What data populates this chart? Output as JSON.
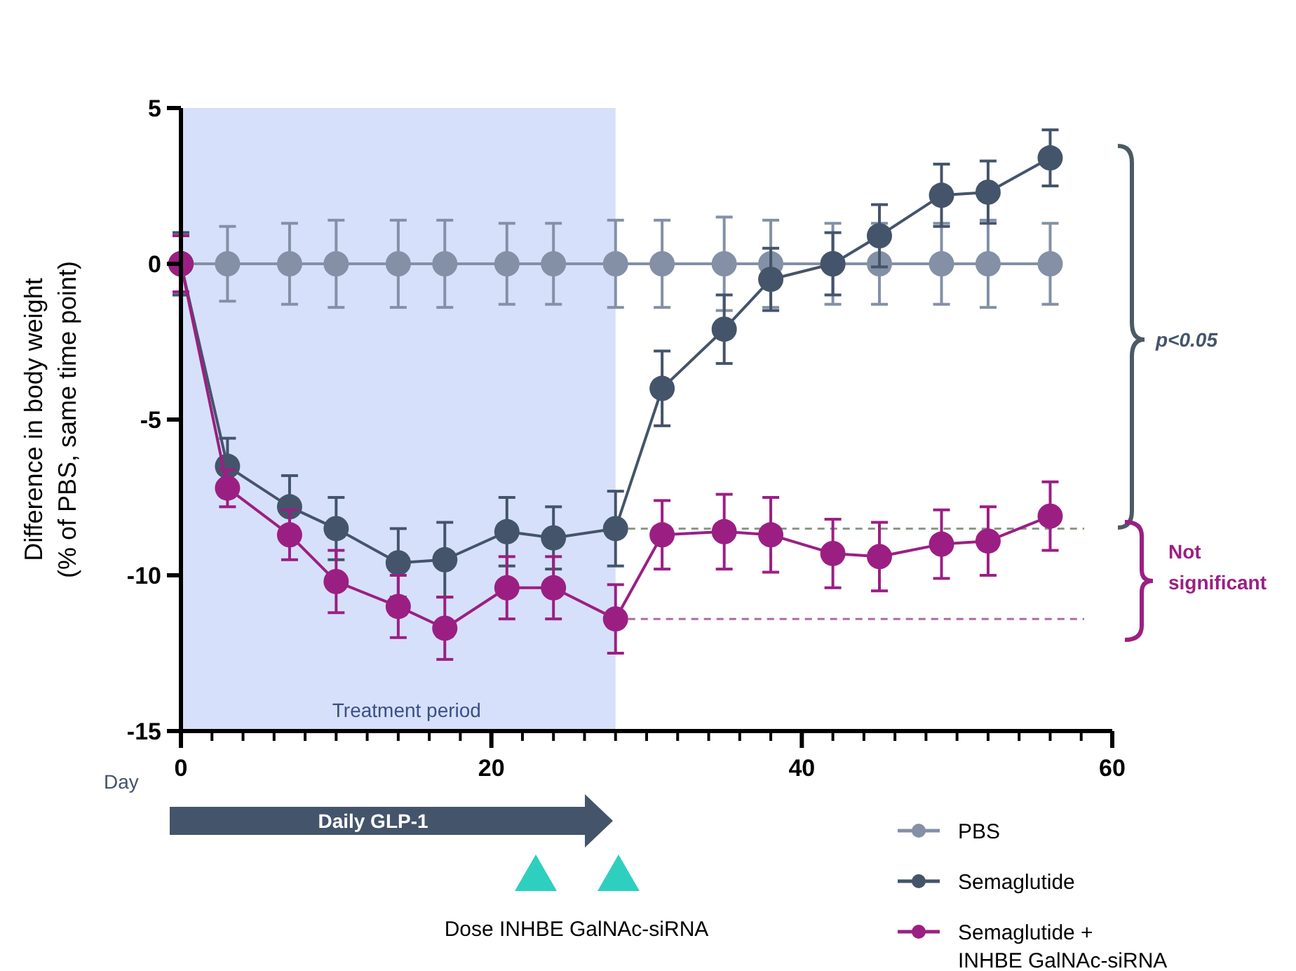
{
  "chart_data": {
    "type": "line",
    "ylabel": "Difference in body weight\n(% of PBS, same time point)",
    "xlabel": "Day",
    "x": [
      0,
      3,
      7,
      10,
      14,
      17,
      21,
      24,
      28,
      31,
      35,
      38,
      42,
      45,
      49,
      52,
      56
    ],
    "series": [
      {
        "name": "PBS",
        "color": "#8390a6",
        "values": [
          0,
          0,
          0,
          0,
          0,
          0,
          0,
          0,
          0,
          0,
          0,
          0,
          0,
          0,
          0,
          0,
          0
        ],
        "errors": [
          1,
          1.2,
          1.3,
          1.4,
          1.4,
          1.4,
          1.3,
          1.3,
          1.4,
          1.4,
          1.5,
          1.4,
          1.3,
          1.3,
          1.3,
          1.4,
          1.3
        ]
      },
      {
        "name": "Semaglutide",
        "color": "#44546a",
        "values": [
          0,
          -6.5,
          -7.8,
          -8.5,
          -9.6,
          -9.5,
          -8.6,
          -8.8,
          -8.5,
          -4.0,
          -2.1,
          -0.5,
          0,
          0.9,
          2.2,
          2.3,
          3.4
        ],
        "errors": [
          1,
          0.9,
          1.0,
          1.0,
          1.1,
          1.2,
          1.1,
          1.0,
          1.2,
          1.2,
          1.1,
          1.0,
          1.0,
          1.0,
          1.0,
          1.0,
          0.9
        ]
      },
      {
        "name": "Semaglutide +\nINHBE GalNAc-siRNA",
        "color": "#9b1f83",
        "values": [
          0,
          -7.2,
          -8.7,
          -10.2,
          -11.0,
          -11.7,
          -10.4,
          -10.4,
          -11.4,
          -8.7,
          -8.6,
          -8.7,
          -9.3,
          -9.4,
          -9.0,
          -8.9,
          -8.1
        ],
        "errors": [
          0.9,
          0.6,
          0.8,
          1.0,
          1.0,
          1.0,
          1.0,
          1.0,
          1.1,
          1.1,
          1.2,
          1.2,
          1.1,
          1.1,
          1.1,
          1.1,
          1.1
        ]
      }
    ],
    "xlim": [
      0,
      60
    ],
    "xticks": [
      0,
      {
        "value": 2,
        "label": null
      },
      {
        "value": 4,
        "label": null
      },
      {
        "value": 6,
        "label": null
      },
      {
        "value": 8,
        "label": null
      },
      {
        "value": 10,
        "label": null
      },
      {
        "value": 12,
        "label": null
      },
      {
        "value": 14,
        "label": null
      },
      {
        "value": 16,
        "label": null
      },
      {
        "value": 18,
        "label": null
      },
      20,
      {
        "value": 22,
        "label": null
      },
      {
        "value": 24,
        "label": null
      },
      {
        "value": 26,
        "label": null
      },
      {
        "value": 28,
        "label": null
      },
      {
        "value": 30,
        "label": null
      },
      {
        "value": 32,
        "label": null
      },
      {
        "value": 34,
        "label": null
      },
      {
        "value": 36,
        "label": null
      },
      {
        "value": 38,
        "label": null
      },
      40,
      {
        "value": 42,
        "label": null
      },
      {
        "value": 44,
        "label": null
      },
      {
        "value": 46,
        "label": null
      },
      {
        "value": 48,
        "label": null
      },
      {
        "value": 50,
        "label": null
      },
      {
        "value": 52,
        "label": null
      },
      {
        "value": 54,
        "label": null
      },
      {
        "value": 56,
        "label": null
      },
      {
        "value": 58,
        "label": null
      },
      60
    ],
    "ylim": [
      -15,
      5
    ],
    "yticks": [
      -15,
      -10,
      -5,
      0,
      5
    ],
    "bands": [
      {
        "axis": "x",
        "from": 0,
        "to": 28,
        "label": "Treatment period",
        "color": "#d6e0fb"
      }
    ],
    "ref_lines": [
      {
        "axis": "y",
        "value": -8.5,
        "color": "#8a9a8a",
        "line_style": "dashed"
      },
      {
        "axis": "y",
        "value": -11.4,
        "color": "#b06aa0",
        "line_style": "dashed"
      }
    ],
    "annotations": [
      "p<0.05",
      "Not significant",
      "Daily GLP-1",
      "Dose INHBE GalNAc-siRNA"
    ],
    "marker": "circle",
    "grid": false,
    "legend": "bottom right"
  }
}
